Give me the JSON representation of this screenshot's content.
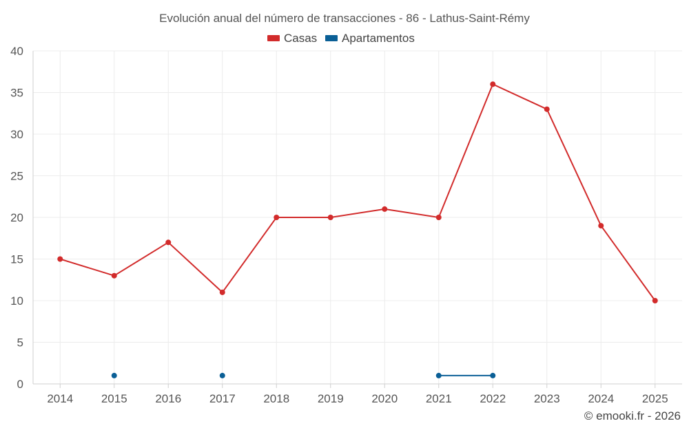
{
  "chart_data": {
    "type": "line",
    "title": "Evolución anual del número de transacciones - 86 - Lathus-Saint-Rémy",
    "categories": [
      "2014",
      "2015",
      "2016",
      "2017",
      "2018",
      "2019",
      "2020",
      "2021",
      "2022",
      "2023",
      "2024",
      "2025"
    ],
    "series": [
      {
        "name": "Casas",
        "color": "#d22b2b",
        "values": [
          15,
          13,
          17,
          11,
          20,
          20,
          21,
          20,
          36,
          33,
          19,
          10
        ]
      },
      {
        "name": "Apartamentos",
        "color": "#0a5f96",
        "values": [
          null,
          1,
          null,
          1,
          null,
          null,
          null,
          1,
          1,
          null,
          null,
          null
        ]
      }
    ],
    "ylim": [
      0,
      40
    ],
    "yticks": [
      0,
      5,
      10,
      15,
      20,
      25,
      30,
      35,
      40
    ],
    "grid": true,
    "legend": "top-center",
    "xlabel": "",
    "ylabel": ""
  },
  "credit": "© emooki.fr - 2026"
}
